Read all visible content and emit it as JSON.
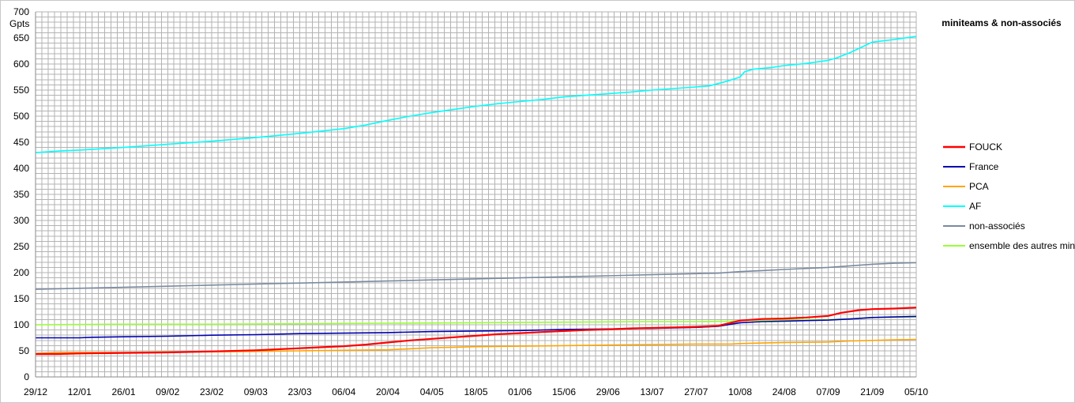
{
  "chart_data": {
    "type": "line",
    "title": "miniteams & non-associés",
    "ylabel": "Gpts",
    "xlabel": "",
    "ylim": [
      0,
      700
    ],
    "ytick_step": 50,
    "grid": true,
    "legend_position": "right",
    "x_tick_labels": [
      "29/12",
      "12/01",
      "26/01",
      "09/02",
      "23/02",
      "09/03",
      "23/03",
      "06/04",
      "20/04",
      "04/05",
      "18/05",
      "01/06",
      "15/06",
      "29/06",
      "13/07",
      "27/07",
      "10/08",
      "24/08",
      "07/09",
      "21/09",
      "05/10"
    ],
    "series": [
      {
        "name": "FOUCK",
        "color": "#ff0000",
        "width": 2.2,
        "points": [
          [
            0,
            44
          ],
          [
            0.5,
            44
          ],
          [
            1,
            45
          ],
          [
            2,
            46
          ],
          [
            3,
            47
          ],
          [
            4,
            49
          ],
          [
            5,
            51
          ],
          [
            5.5,
            53
          ],
          [
            6,
            55
          ],
          [
            6.5,
            57
          ],
          [
            7,
            59
          ],
          [
            7.5,
            62
          ],
          [
            8,
            66
          ],
          [
            8.5,
            70
          ],
          [
            9,
            73
          ],
          [
            9.5,
            76
          ],
          [
            10,
            79
          ],
          [
            10.5,
            82
          ],
          [
            11,
            84
          ],
          [
            11.5,
            86
          ],
          [
            12,
            88
          ],
          [
            12.5,
            90
          ],
          [
            13,
            91
          ],
          [
            13.5,
            93
          ],
          [
            14,
            94
          ],
          [
            14.5,
            95
          ],
          [
            15,
            96
          ],
          [
            15.5,
            98
          ],
          [
            16,
            108
          ],
          [
            16.5,
            111
          ],
          [
            17,
            112
          ],
          [
            17.5,
            114
          ],
          [
            18,
            117
          ],
          [
            18.3,
            123
          ],
          [
            18.7,
            128
          ],
          [
            19,
            130
          ],
          [
            19.5,
            131
          ],
          [
            20,
            133
          ]
        ]
      },
      {
        "name": "France",
        "color": "#0000b0",
        "width": 1.6,
        "points": [
          [
            0,
            75
          ],
          [
            1,
            75
          ],
          [
            1.3,
            76
          ],
          [
            2,
            77
          ],
          [
            3,
            78
          ],
          [
            4,
            80
          ],
          [
            5,
            81
          ],
          [
            6,
            83
          ],
          [
            7,
            84
          ],
          [
            8,
            85
          ],
          [
            9,
            87
          ],
          [
            10,
            88
          ],
          [
            11,
            89
          ],
          [
            12,
            91
          ],
          [
            13,
            92
          ],
          [
            14,
            93
          ],
          [
            15,
            95
          ],
          [
            15.5,
            97
          ],
          [
            16,
            104
          ],
          [
            16.5,
            106
          ],
          [
            17,
            107
          ],
          [
            18,
            109
          ],
          [
            18.5,
            111
          ],
          [
            19,
            114
          ],
          [
            19.5,
            115
          ],
          [
            20,
            116
          ]
        ]
      },
      {
        "name": "PCA",
        "color": "#ffa500",
        "width": 1.6,
        "points": [
          [
            0,
            45
          ],
          [
            0.5,
            47
          ],
          [
            1,
            47
          ],
          [
            2,
            47
          ],
          [
            3,
            48
          ],
          [
            4,
            48
          ],
          [
            5,
            49
          ],
          [
            6,
            50
          ],
          [
            7,
            51
          ],
          [
            8,
            52
          ],
          [
            8.5,
            54
          ],
          [
            9,
            56
          ],
          [
            9.5,
            57
          ],
          [
            10,
            58
          ],
          [
            11,
            59
          ],
          [
            12,
            60
          ],
          [
            13,
            61
          ],
          [
            14,
            62
          ],
          [
            15,
            63
          ],
          [
            15.8,
            63
          ],
          [
            16,
            64
          ],
          [
            16.5,
            65
          ],
          [
            17,
            66
          ],
          [
            18,
            67
          ],
          [
            18.5,
            69
          ],
          [
            19,
            70
          ],
          [
            19.5,
            71
          ],
          [
            20,
            72
          ]
        ]
      },
      {
        "name": "AF",
        "color": "#00ffff",
        "width": 1.6,
        "points": [
          [
            0,
            430
          ],
          [
            0.5,
            433
          ],
          [
            1,
            435
          ],
          [
            2,
            440
          ],
          [
            3,
            446
          ],
          [
            4,
            452
          ],
          [
            5,
            459
          ],
          [
            6,
            467
          ],
          [
            7,
            476
          ],
          [
            7.5,
            483
          ],
          [
            8,
            492
          ],
          [
            8.5,
            500
          ],
          [
            9,
            507
          ],
          [
            9.5,
            513
          ],
          [
            10,
            519
          ],
          [
            10.5,
            524
          ],
          [
            11,
            528
          ],
          [
            11.5,
            532
          ],
          [
            12,
            537
          ],
          [
            12.5,
            540
          ],
          [
            13,
            543
          ],
          [
            13.5,
            546
          ],
          [
            14,
            550
          ],
          [
            14.5,
            553
          ],
          [
            15,
            556
          ],
          [
            15.3,
            558
          ],
          [
            15.7,
            567
          ],
          [
            16,
            575
          ],
          [
            16.1,
            585
          ],
          [
            16.3,
            590
          ],
          [
            16.7,
            593
          ],
          [
            17,
            597
          ],
          [
            17.5,
            601
          ],
          [
            18,
            607
          ],
          [
            18.2,
            612
          ],
          [
            18.5,
            622
          ],
          [
            19,
            642
          ],
          [
            19.5,
            647
          ],
          [
            20,
            653
          ]
        ]
      },
      {
        "name": "non-associés",
        "color": "#7a8aa0",
        "width": 1.6,
        "points": [
          [
            0,
            168
          ],
          [
            1,
            170
          ],
          [
            2,
            172
          ],
          [
            3,
            174
          ],
          [
            4,
            176
          ],
          [
            5,
            178
          ],
          [
            6,
            180
          ],
          [
            7,
            182
          ],
          [
            8,
            184
          ],
          [
            9,
            186
          ],
          [
            10,
            188
          ],
          [
            11,
            190
          ],
          [
            12,
            192
          ],
          [
            13,
            194
          ],
          [
            14,
            196
          ],
          [
            15,
            198
          ],
          [
            15.5,
            199
          ],
          [
            16,
            202
          ],
          [
            16.5,
            204
          ],
          [
            17,
            206
          ],
          [
            17.5,
            208
          ],
          [
            18,
            210
          ],
          [
            18.5,
            213
          ],
          [
            19,
            216
          ],
          [
            19.5,
            218
          ],
          [
            20,
            219
          ]
        ]
      },
      {
        "name": "ensemble des autres miniteams",
        "color": "#99ff33",
        "width": 1.6,
        "points": [
          [
            0,
            100
          ],
          [
            2,
            101
          ],
          [
            4,
            101
          ],
          [
            6,
            102
          ],
          [
            8,
            103
          ],
          [
            10,
            104
          ],
          [
            12,
            105
          ],
          [
            14,
            106
          ],
          [
            15,
            106
          ],
          [
            15.8,
            107
          ],
          [
            16,
            108
          ],
          [
            17,
            109
          ],
          [
            18,
            110
          ],
          [
            18.7,
            112
          ],
          [
            19,
            114
          ],
          [
            20,
            115
          ]
        ]
      }
    ]
  }
}
